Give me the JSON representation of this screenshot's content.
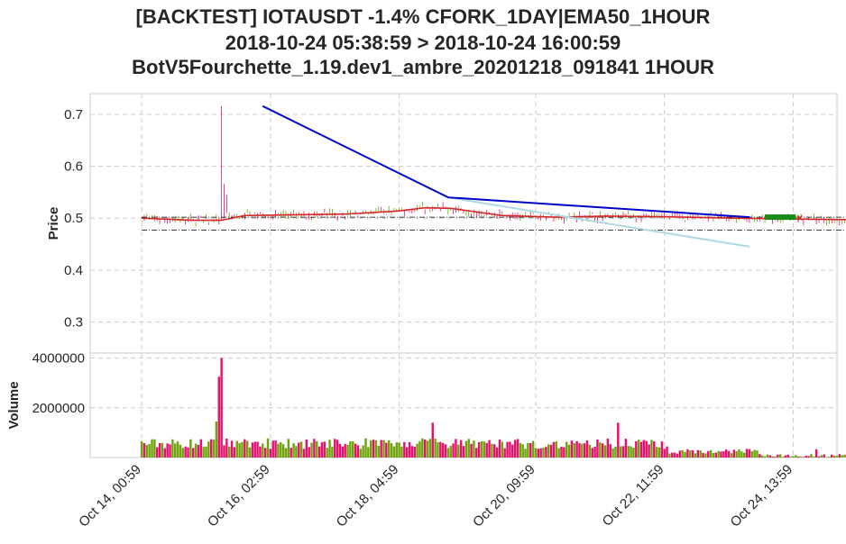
{
  "title": {
    "line1": "[BACKTEST] IOTAUSDT -1.4% CFORK_1DAY|EMA50_1HOUR",
    "line2": "2018-10-24 05:38:59 > 2018-10-24 16:00:59",
    "line3": "BotV5Fourchette_1.19.dev1_ambre_20201218_091841 1HOUR"
  },
  "colors": {
    "up": "#6ea30c",
    "down": "#e6106e",
    "ema": "#d62728",
    "trend_high": "#0000cc",
    "trend_low": "#add8e6",
    "grid": "#cccccc"
  },
  "chart_data": [
    {
      "type": "candlestick",
      "ylabel": "Price",
      "ylim": [
        0.24,
        0.74
      ],
      "yticks": [
        0.3,
        0.4,
        0.5,
        0.6,
        0.7
      ],
      "x_range_hours": [
        -20,
        270
      ],
      "xticks": [
        {
          "label": "Oct 14, 00:59",
          "hour": 0
        },
        {
          "label": "Oct 16, 02:59",
          "hour": 50
        },
        {
          "label": "Oct 18, 04:59",
          "hour": 100
        },
        {
          "label": "Oct 20, 09:59",
          "hour": 153
        },
        {
          "label": "Oct 22, 11:59",
          "hour": 203
        },
        {
          "label": "Oct 24, 13:59",
          "hour": 253
        }
      ],
      "spike": {
        "hour": 31,
        "high": 0.716,
        "low": 0.495
      },
      "ema_points": [
        [
          0,
          0.5
        ],
        [
          20,
          0.496
        ],
        [
          31,
          0.496
        ],
        [
          40,
          0.505
        ],
        [
          80,
          0.508
        ],
        [
          100,
          0.514
        ],
        [
          110,
          0.52
        ],
        [
          120,
          0.519
        ],
        [
          140,
          0.505
        ],
        [
          160,
          0.502
        ],
        [
          180,
          0.504
        ],
        [
          200,
          0.503
        ],
        [
          230,
          0.5
        ],
        [
          260,
          0.498
        ],
        [
          279,
          0.497
        ]
      ],
      "trendline_high": [
        [
          47,
          0.716
        ],
        [
          119,
          0.54
        ],
        [
          236,
          0.502
        ]
      ],
      "trendline_low": [
        [
          119,
          0.54
        ],
        [
          236,
          0.445
        ]
      ],
      "hlines": [
        0.502,
        0.477
      ],
      "trade_zone": {
        "start_hour": 242,
        "end_hour": 254,
        "price": 0.502
      }
    },
    {
      "type": "bar",
      "ylabel": "Volume",
      "ylim": [
        0,
        4200000
      ],
      "yticks": [
        2000000,
        4000000
      ],
      "peak_volume": 4000000,
      "peak_hour": 31
    }
  ]
}
